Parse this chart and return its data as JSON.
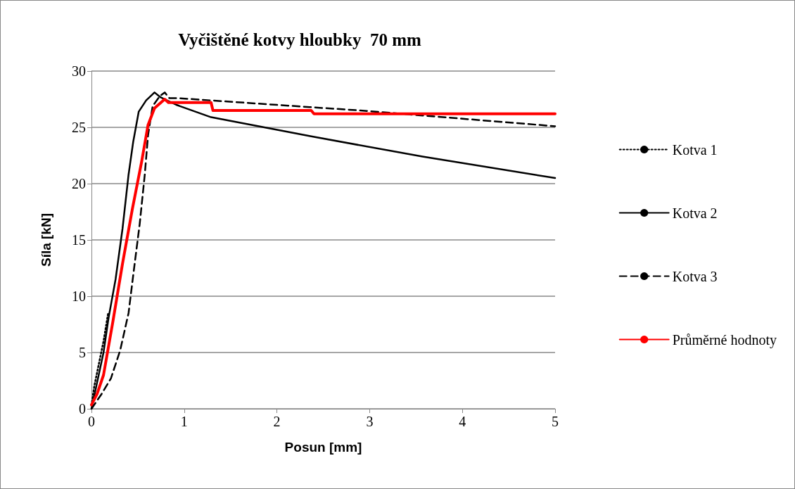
{
  "chart_data": {
    "type": "line",
    "title": "Vyčištěné kotvy hloubky  70 mm",
    "xlabel": "Posun [mm]",
    "ylabel": "Síla [kN]",
    "xlim": [
      0,
      5
    ],
    "xticks": [
      0,
      1,
      2,
      3,
      4,
      5
    ],
    "ylim": [
      0,
      30
    ],
    "yticks": [
      0,
      5,
      10,
      15,
      20,
      25,
      30
    ],
    "grid": "y",
    "legend": "right",
    "marker": "none",
    "series": [
      {
        "name": "Kotva 1",
        "color": "#000000",
        "line_style": "dotted",
        "x": [
          0,
          0.03,
          0.08,
          0.13,
          0.18
        ],
        "values": [
          0.3,
          2,
          4,
          6,
          8.5
        ]
      },
      {
        "name": "Kotva 2",
        "color": "#000000",
        "line_style": "solid",
        "x": [
          0,
          0.13,
          0.185,
          0.26,
          0.335,
          0.4,
          0.45,
          0.51,
          0.59,
          0.68,
          0.74,
          0.915,
          1.29,
          2.37,
          3.57,
          5
        ],
        "values": [
          0,
          5,
          8.1,
          11.5,
          16,
          20.8,
          23.7,
          26.4,
          27.4,
          28.1,
          27.7,
          27,
          25.9,
          24.2,
          22.4,
          20.5
        ]
      },
      {
        "name": "Kotva 3",
        "color": "#000000",
        "line_style": "dashed",
        "x": [
          0,
          0.108,
          0.21,
          0.31,
          0.4,
          0.46,
          0.52,
          0.575,
          0.61,
          0.66,
          0.74,
          0.79,
          0.84,
          0.915,
          2.35,
          2.9,
          5
        ],
        "values": [
          0,
          1.3,
          2.7,
          5.2,
          8.5,
          12.5,
          16.4,
          20.8,
          24.3,
          26.9,
          27.8,
          28.1,
          27.6,
          27.6,
          26.8,
          26.5,
          25.1
        ]
      },
      {
        "name": "Průměrné hodnoty",
        "color": "#ff0000",
        "line_style": "solid",
        "x": [
          0,
          0.06,
          0.13,
          0.23,
          0.335,
          0.44,
          0.54,
          0.61,
          0.68,
          0.79,
          0.83,
          1.29,
          1.31,
          2.37,
          2.4,
          5
        ],
        "values": [
          0.35,
          1.3,
          3,
          7.7,
          12.9,
          17.7,
          21.9,
          25.2,
          26.7,
          27.5,
          27.2,
          27.2,
          26.5,
          26.5,
          26.2,
          26.2
        ]
      }
    ]
  }
}
